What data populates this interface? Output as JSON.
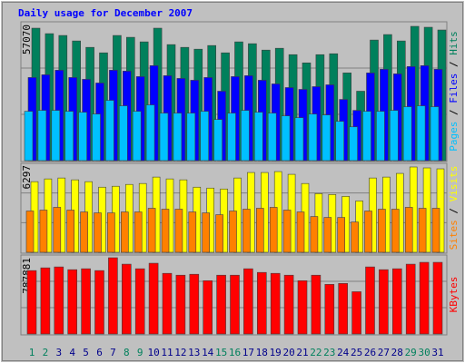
{
  "chart_data": [
    {
      "type": "bar",
      "title": "Daily usage for December 2007",
      "categories": [
        "1",
        "2",
        "3",
        "4",
        "5",
        "6",
        "7",
        "8",
        "9",
        "10",
        "11",
        "12",
        "13",
        "14",
        "15",
        "16",
        "17",
        "18",
        "19",
        "20",
        "21",
        "22",
        "23",
        "24",
        "25",
        "26",
        "27",
        "28",
        "29",
        "30",
        "31"
      ],
      "category_colors": [
        "#00805c",
        "#00805c",
        "#00008b",
        "#00008b",
        "#00008b",
        "#00008b",
        "#00008b",
        "#00805c",
        "#00805c",
        "#00008b",
        "#00008b",
        "#00008b",
        "#00008b",
        "#00008b",
        "#00805c",
        "#00805c",
        "#00008b",
        "#00008b",
        "#00008b",
        "#00008b",
        "#00008b",
        "#00805c",
        "#00805c",
        "#00008b",
        "#00008b",
        "#00008b",
        "#00008b",
        "#00008b",
        "#00805c",
        "#00805c",
        "#00008b"
      ],
      "ylim": [
        0,
        57070
      ],
      "yticks": [
        57070
      ],
      "legend_separator": " / ",
      "series": [
        {
          "name": "Pages",
          "color": "#00c0ff",
          "values": [
            20682,
            21065,
            21065,
            20682,
            20299,
            19533,
            25278,
            22980,
            20682,
            23363,
            19916,
            19916,
            19916,
            20682,
            17235,
            19916,
            21065,
            20299,
            19916,
            18767,
            18001,
            19533,
            19150,
            16469,
            14171,
            20682,
            20682,
            21065,
            22597,
            22980,
            22597
          ]
        },
        {
          "name": "Files",
          "color": "#0000ff",
          "values": [
            34853,
            36002,
            37917,
            34853,
            34087,
            32555,
            37917,
            37534,
            35236,
            39832,
            35619,
            34470,
            33704,
            34853,
            29108,
            35236,
            35619,
            33704,
            32172,
            30640,
            29874,
            31023,
            31789,
            25661,
            21065,
            36768,
            38300,
            36385,
            39449,
            39832,
            38300
          ]
        },
        {
          "name": "Hits",
          "color": "#00805c",
          "values": [
            55535,
            53237,
            52471,
            50173,
            47492,
            45194,
            52471,
            51705,
            49790,
            55535,
            48641,
            47492,
            46726,
            48258,
            45194,
            49790,
            49024,
            46343,
            47109,
            44428,
            40981,
            44428,
            44811,
            36768,
            29108,
            50556,
            52854,
            50173,
            56301,
            55918,
            54769
          ]
        }
      ]
    },
    {
      "type": "bar",
      "ylim": [
        0,
        6297
      ],
      "yticks": [
        6297
      ],
      "legend_separator": " / ",
      "series": [
        {
          "name": "Sites",
          "color": "#ff8000",
          "values": [
            2984,
            3050,
            3249,
            3050,
            2917,
            2851,
            2851,
            2917,
            2917,
            3182,
            3116,
            3116,
            2917,
            2851,
            2718,
            2984,
            3116,
            3182,
            3249,
            3050,
            2917,
            2586,
            2519,
            2519,
            2188,
            2984,
            3116,
            3116,
            3249,
            3182,
            3182
          ]
        },
        {
          "name": "Visits",
          "color": "#ffff00",
          "values": [
            5105,
            5304,
            5370,
            5238,
            5105,
            4707,
            4774,
            4906,
            4973,
            5437,
            5304,
            5238,
            4707,
            4641,
            4575,
            5370,
            5768,
            5768,
            5834,
            5636,
            4973,
            4243,
            4177,
            4044,
            3713,
            5370,
            5437,
            5702,
            6166,
            6100,
            6033
          ]
        }
      ]
    },
    {
      "type": "bar",
      "ylim": [
        0,
        787881
      ],
      "yticks": [
        787881
      ],
      "series": [
        {
          "name": "KBytes",
          "color": "#ff0000",
          "values": [
            655017,
            683496,
            692989,
            664510,
            674003,
            655017,
            787881,
            721468,
            674003,
            730961,
            626538,
            607552,
            617045,
            550594,
            607552,
            607552,
            674003,
            636031,
            626538,
            607552,
            550594,
            607552,
            512622,
            522115,
            436678,
            692989,
            664510,
            674003,
            721468,
            740454,
            740454
          ]
        }
      ]
    }
  ]
}
